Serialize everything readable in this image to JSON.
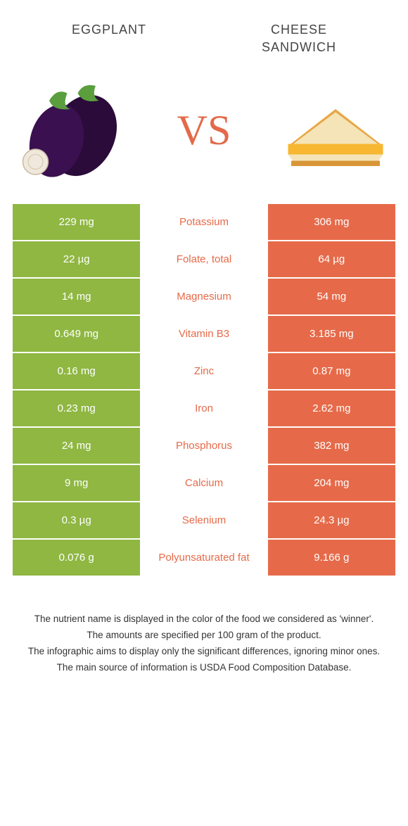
{
  "colors": {
    "left": "#8fb742",
    "right": "#e66a49",
    "vs": "#e26a4a"
  },
  "titles": {
    "left": "Eggplant",
    "right_line1": "Cheese",
    "right_line2": "Sandwich"
  },
  "vs_label": "VS",
  "rows": [
    {
      "left": "229 mg",
      "label": "Potassium",
      "right": "306 mg",
      "winner": "right"
    },
    {
      "left": "22 µg",
      "label": "Folate, total",
      "right": "64 µg",
      "winner": "right"
    },
    {
      "left": "14 mg",
      "label": "Magnesium",
      "right": "54 mg",
      "winner": "right"
    },
    {
      "left": "0.649 mg",
      "label": "Vitamin B3",
      "right": "3.185 mg",
      "winner": "right"
    },
    {
      "left": "0.16 mg",
      "label": "Zinc",
      "right": "0.87 mg",
      "winner": "right"
    },
    {
      "left": "0.23 mg",
      "label": "Iron",
      "right": "2.62 mg",
      "winner": "right"
    },
    {
      "left": "24 mg",
      "label": "Phosphorus",
      "right": "382 mg",
      "winner": "right"
    },
    {
      "left": "9 mg",
      "label": "Calcium",
      "right": "204 mg",
      "winner": "right"
    },
    {
      "left": "0.3 µg",
      "label": "Selenium",
      "right": "24.3 µg",
      "winner": "right"
    },
    {
      "left": "0.076 g",
      "label": "Polyunsaturated fat",
      "right": "9.166 g",
      "winner": "right"
    }
  ],
  "footer": [
    "The nutrient name is displayed in the color of the food we considered as 'winner'.",
    "The amounts are specified per 100 gram of the product.",
    "The infographic aims to display only the significant differences, ignoring minor ones.",
    "The main source of information is USDA Food Composition Database."
  ]
}
